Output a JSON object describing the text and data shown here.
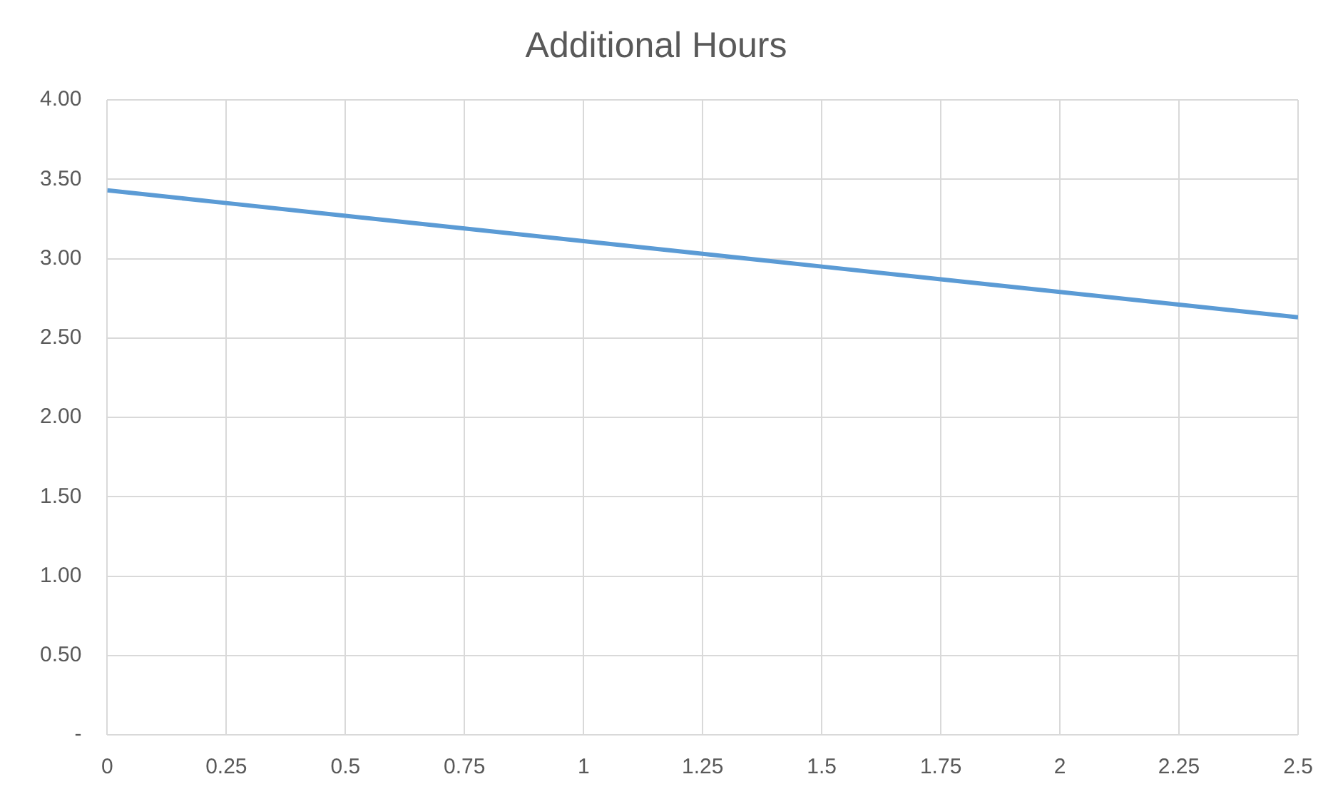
{
  "chart_data": {
    "type": "line",
    "title": "Additional Hours",
    "x": [
      0,
      0.25,
      0.5,
      0.75,
      1,
      1.25,
      1.5,
      1.75,
      2,
      2.25,
      2.5
    ],
    "series": [
      {
        "color": "#5b9bd5",
        "values": [
          3.43,
          3.35,
          3.27,
          3.19,
          3.11,
          3.03,
          2.95,
          2.87,
          2.79,
          2.71,
          2.63
        ]
      }
    ],
    "xlim": [
      0,
      2.5
    ],
    "xticks": [
      0,
      0.25,
      0.5,
      0.75,
      1,
      1.25,
      1.5,
      1.75,
      2,
      2.25,
      2.5
    ],
    "ylim": [
      0,
      4
    ],
    "yticks": [
      {
        "value": 0,
        "label": "-"
      },
      {
        "value": 0.5,
        "label": "0.50"
      },
      {
        "value": 1,
        "label": "1.00"
      },
      {
        "value": 1.5,
        "label": "1.50"
      },
      {
        "value": 2,
        "label": "2.00"
      },
      {
        "value": 2.5,
        "label": "2.50"
      },
      {
        "value": 3,
        "label": "3.00"
      },
      {
        "value": 3.5,
        "label": "3.50"
      },
      {
        "value": 4,
        "label": "4.00"
      }
    ],
    "grid": true,
    "marker": "none",
    "line_style": "solid"
  }
}
